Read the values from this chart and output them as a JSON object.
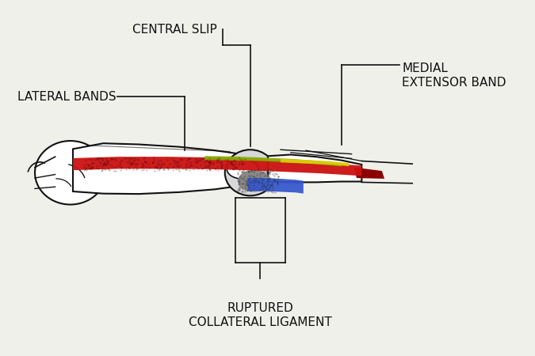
{
  "background_color": "#f0f0eb",
  "labels": {
    "central_slip": "CENTRAL SLIP",
    "lateral_bands": "LATERAL BANDS",
    "medial_extensor_band": "MEDIAL\nEXTENSOR BAND",
    "ruptured_collateral": "RUPTURED\nCOLLATERAL LIGAMENT"
  },
  "colors": {
    "red_band": "#cc1111",
    "green_band": "#88aa00",
    "yellow_band": "#ddcc00",
    "blue_band": "#3355cc",
    "dark_red": "#8b0000",
    "line_color": "#111111",
    "text_color": "#111111",
    "bone_white": "#ffffff",
    "joint_gray": "#aaaaaa",
    "stipple_dark": "#555555"
  },
  "font_size": 11
}
